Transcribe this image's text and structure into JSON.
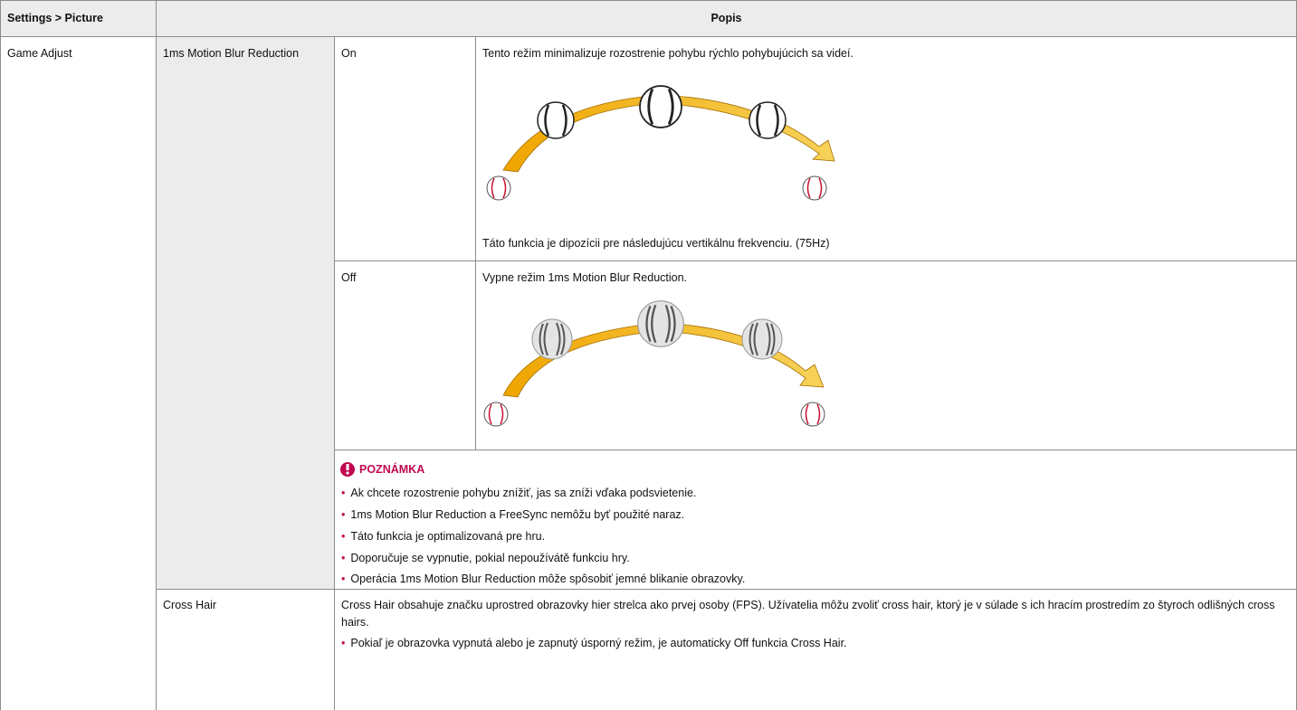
{
  "header": {
    "setting": "Settings > Picture",
    "description": "Popis"
  },
  "game_adjust": {
    "label": "Game Adjust",
    "motion_blur": {
      "label": "1ms Motion Blur Reduction",
      "options": [
        {
          "label": "On",
          "text": "Tento režim minimalizuje rozostrenie pohybu rýchlo pohybujúcich sa videí.",
          "footnote": "Táto funkcia je dipozícii pre následujúcu vertikálnu frekvenciu. (75Hz)"
        },
        {
          "label": "Off",
          "text": "Vypne režim 1ms Motion Blur Reduction."
        }
      ],
      "note": {
        "title": "POZNÁMKA",
        "items": [
          "Ak chcete rozostrenie pohybu znížiť, jas sa zníži vďaka podsvietenie.",
          "1ms Motion Blur Reduction a FreeSync nemôžu byť použité naraz.",
          "Táto funkcia je optimalizovaná pre hru.",
          "Doporučuje se vypnutie, pokial nepoužívátě funkciu hry.",
          "Operácia 1ms Motion Blur Reduction môže spôsobiť  jemné blikanie obrazovky."
        ]
      }
    },
    "cross_hair": {
      "label": "Cross Hair",
      "text": "Cross Hair obsahuje značku uprostred obrazovky hier strelca ako prvej osoby (FPS). Užívatelia môžu zvoliť cross hair, ktorý je v súlade s ich hracím prostredím zo štyroch odlišných cross hairs.",
      "items": [
        "Pokiaľ je obrazovka vypnutá alebo je zapnutý úsporný režim, je automaticky Off funkcia Cross Hair."
      ]
    }
  }
}
